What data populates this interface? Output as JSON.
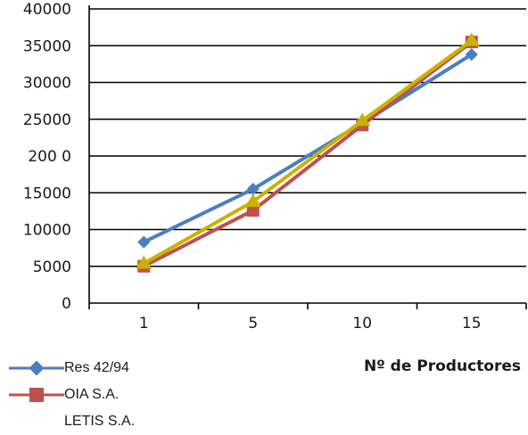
{
  "chart_data": {
    "type": "line",
    "categories": [
      "1",
      "5",
      "10",
      "15"
    ],
    "ylim": [
      0,
      40000
    ],
    "yticks": [
      "0",
      "5000",
      "10000",
      "15000",
      "20000",
      "25000",
      "30000",
      "35000",
      "40000"
    ],
    "ytick_labels": [
      "0",
      "5000",
      "10000",
      "15000",
      "200  0",
      "25000",
      "30000",
      "35000",
      "40000"
    ],
    "xlabel": "Nº de Productores",
    "ylabel": "",
    "grid": "horizontal",
    "legend_position": "bottom-left",
    "series": [
      {
        "name": "Res 42/94",
        "color": "#4a7fc1",
        "marker": "diamond",
        "values": [
          8300,
          15500,
          24500,
          33800
        ]
      },
      {
        "name": "OIA S.A.",
        "color": "#c0504d",
        "marker": "square",
        "values": [
          5000,
          12600,
          24200,
          35500
        ]
      },
      {
        "name": "LETIS S.A.",
        "color": "#c8b400",
        "marker": "triangle",
        "values": [
          5400,
          13800,
          24800,
          35700
        ]
      }
    ]
  }
}
